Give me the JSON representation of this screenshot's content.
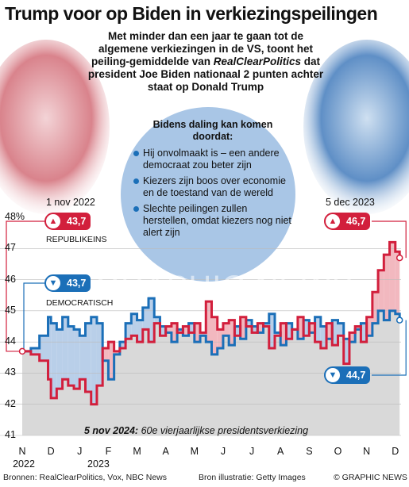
{
  "header": {
    "title": "Trump voor op Biden in verkiezingspeilingen",
    "subtitle_before": "Met minder dan een jaar te gaan tot de algemene verkiezingen in de VS, toont het peiling-gemiddelde van ",
    "subtitle_source": "RealClearPolitics",
    "subtitle_after": " dat president Joe Biden nationaal 2 punten achter staat op Donald Trump"
  },
  "circle": {
    "heading": "Bidens daling kan komen doordat:",
    "reasons": [
      "Hij onvolmaakt is – een andere democraat zou beter zijn",
      "Kiezers zijn boos over economie en de toestand van de wereld",
      "Slechte peilingen zullen herstellen, omdat kiezers nog niet alert zijn"
    ]
  },
  "annotations": {
    "start_date": "1 nov 2022",
    "end_date": "5 dec 2023",
    "rep_start": "43,7",
    "dem_start": "43,7",
    "rep_end": "46,7",
    "dem_end": "44,7",
    "rep_label": "REPUBLIKEINS",
    "dem_label": "DEMOCRATISCH",
    "election_date": "5 nov 2024:",
    "election_text": " 60e vierjaarlijkse presidentsverkiezing"
  },
  "icons": {
    "republican": "elephant-icon",
    "democrat": "donkey-icon"
  },
  "colors": {
    "republican": "#d21f3c",
    "democrat": "#1b6fb8",
    "rep_fill": "#f2b8bf",
    "dem_fill": "#b9cfe9",
    "area": "#d9d9d9"
  },
  "watermark": "GRAPHIC NEWS",
  "footer": {
    "sources": "Bronnen: RealClearPolitics, Vox, NBC News",
    "illustration": "Bron illustratie: Getty Images",
    "credit": "© GRAPHIC NEWS"
  },
  "chart_data": {
    "type": "line",
    "yunit": "48%",
    "ylim": [
      41,
      48
    ],
    "yticks": [
      "41",
      "42",
      "43",
      "44",
      "45",
      "46",
      "47"
    ],
    "xlim": [
      0,
      13.2
    ],
    "xticks": [
      {
        "label": "N",
        "x": 0
      },
      {
        "label": "D",
        "x": 1
      },
      {
        "label": "J",
        "x": 2
      },
      {
        "label": "F",
        "x": 3
      },
      {
        "label": "M",
        "x": 4
      },
      {
        "label": "A",
        "x": 5
      },
      {
        "label": "M",
        "x": 6
      },
      {
        "label": "J",
        "x": 7
      },
      {
        "label": "J",
        "x": 8
      },
      {
        "label": "A",
        "x": 9
      },
      {
        "label": "S",
        "x": 10
      },
      {
        "label": "O",
        "x": 11
      },
      {
        "label": "N",
        "x": 12
      },
      {
        "label": "D",
        "x": 13
      }
    ],
    "year_labels": [
      {
        "label": "2022",
        "x": 0
      },
      {
        "label": "2023",
        "x": 2.6
      }
    ],
    "series": [
      {
        "name": "REPUBLIKEINS",
        "x": [
          0,
          0.3,
          0.6,
          0.9,
          1.0,
          1.2,
          1.4,
          1.6,
          1.8,
          2.0,
          2.2,
          2.4,
          2.6,
          2.8,
          3.0,
          3.2,
          3.4,
          3.6,
          3.8,
          4.0,
          4.2,
          4.4,
          4.6,
          4.8,
          5.0,
          5.2,
          5.4,
          5.6,
          5.8,
          6.0,
          6.2,
          6.4,
          6.6,
          6.8,
          7.0,
          7.2,
          7.4,
          7.6,
          7.8,
          8.0,
          8.2,
          8.4,
          8.6,
          8.8,
          9.0,
          9.2,
          9.4,
          9.6,
          9.8,
          10.0,
          10.2,
          10.4,
          10.6,
          10.8,
          11.0,
          11.2,
          11.4,
          11.6,
          11.8,
          12.0,
          12.2,
          12.4,
          12.6,
          12.8,
          13.0,
          13.15
        ],
        "values": [
          43.7,
          43.6,
          43.4,
          42.8,
          42.2,
          42.5,
          42.8,
          42.6,
          42.5,
          42.8,
          42.4,
          42.0,
          42.6,
          43.8,
          44.0,
          43.7,
          43.8,
          44.1,
          44.2,
          44.0,
          44.4,
          44.0,
          44.6,
          44.2,
          44.5,
          44.6,
          44.3,
          44.5,
          44.3,
          44.6,
          44.3,
          45.3,
          44.8,
          44.4,
          44.6,
          44.7,
          44.2,
          44.8,
          44.5,
          44.3,
          44.6,
          44.5,
          43.8,
          44.2,
          44.6,
          44.1,
          44.4,
          44.8,
          44.2,
          44.6,
          44.0,
          43.8,
          44.6,
          43.9,
          44.2,
          43.3,
          44.3,
          44.5,
          44.0,
          44.8,
          45.6,
          46.3,
          46.8,
          47.2,
          46.9,
          46.7
        ]
      },
      {
        "name": "DEMOCRATISCH",
        "x": [
          0,
          0.3,
          0.6,
          0.9,
          1.0,
          1.2,
          1.4,
          1.6,
          1.8,
          2.0,
          2.2,
          2.4,
          2.6,
          2.8,
          3.0,
          3.2,
          3.4,
          3.6,
          3.8,
          4.0,
          4.2,
          4.4,
          4.6,
          4.8,
          5.0,
          5.2,
          5.4,
          5.6,
          5.8,
          6.0,
          6.2,
          6.4,
          6.6,
          6.8,
          7.0,
          7.2,
          7.4,
          7.6,
          7.8,
          8.0,
          8.2,
          8.4,
          8.6,
          8.8,
          9.0,
          9.2,
          9.4,
          9.6,
          9.8,
          10.0,
          10.2,
          10.4,
          10.6,
          10.8,
          11.0,
          11.2,
          11.4,
          11.6,
          11.8,
          12.0,
          12.2,
          12.4,
          12.6,
          12.8,
          13.0,
          13.15
        ],
        "values": [
          43.7,
          43.8,
          44.2,
          44.8,
          44.6,
          44.4,
          44.8,
          44.5,
          44.4,
          44.2,
          44.6,
          44.8,
          44.6,
          43.4,
          42.8,
          43.6,
          44.0,
          44.6,
          44.9,
          44.7,
          45.1,
          45.4,
          44.8,
          44.5,
          44.3,
          44.0,
          44.4,
          44.2,
          44.6,
          44.0,
          44.2,
          44.0,
          43.6,
          43.8,
          44.2,
          43.9,
          44.5,
          44.1,
          44.7,
          44.5,
          44.3,
          44.6,
          44.9,
          44.3,
          43.9,
          44.6,
          44.4,
          44.1,
          44.7,
          44.3,
          44.8,
          44.5,
          44.1,
          44.7,
          44.6,
          44.1,
          44.0,
          44.4,
          44.6,
          44.2,
          44.6,
          45.0,
          44.7,
          45.0,
          44.9,
          44.7
        ]
      }
    ]
  }
}
